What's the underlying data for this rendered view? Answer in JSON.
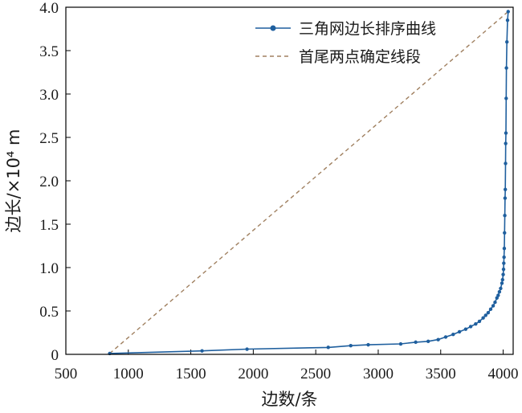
{
  "chart_data": {
    "type": "line",
    "xlabel": "边数/条",
    "ylabel": "边长/×10⁴ m",
    "xlim": [
      500,
      4080
    ],
    "ylim": [
      0,
      4.0
    ],
    "xticks": [
      500,
      1000,
      1500,
      2000,
      2500,
      3000,
      3500,
      4000
    ],
    "yticks": [
      0,
      0.5,
      1.0,
      1.5,
      2.0,
      2.5,
      3.0,
      3.5,
      4.0
    ],
    "ytick_labels": [
      "0",
      "0.5",
      "1.0",
      "1.5",
      "2.0",
      "2.5",
      "3.0",
      "3.5",
      "4.0"
    ],
    "legend_position": "top-right",
    "colors": {
      "curve": "#1f5f9e",
      "chord": "#a08060",
      "axis": "#000000"
    },
    "series": [
      {
        "name": "三角网边长排序曲线",
        "style": "line-with-markers",
        "x": [
          851,
          1590,
          1950,
          2600,
          2780,
          2920,
          3180,
          3300,
          3400,
          3480,
          3540,
          3600,
          3650,
          3700,
          3740,
          3780,
          3810,
          3840,
          3860,
          3880,
          3900,
          3920,
          3935,
          3950,
          3960,
          3970,
          3980,
          3990,
          3995,
          4000,
          4003,
          4005,
          4007,
          4009,
          4011,
          4013,
          4015,
          4017,
          4019,
          4020,
          4022,
          4024,
          4026,
          4030,
          4035,
          4040
        ],
        "y": [
          0.01,
          0.04,
          0.06,
          0.08,
          0.1,
          0.11,
          0.12,
          0.14,
          0.15,
          0.17,
          0.2,
          0.23,
          0.26,
          0.29,
          0.32,
          0.35,
          0.38,
          0.42,
          0.45,
          0.48,
          0.52,
          0.56,
          0.6,
          0.65,
          0.68,
          0.72,
          0.76,
          0.82,
          0.86,
          0.92,
          0.98,
          1.05,
          1.12,
          1.22,
          1.4,
          1.6,
          1.8,
          1.9,
          2.2,
          2.43,
          2.55,
          2.95,
          3.3,
          3.6,
          3.85,
          3.95
        ]
      },
      {
        "name": "首尾两点确定线段",
        "style": "dashed",
        "x": [
          851,
          4040
        ],
        "y": [
          0.01,
          3.95
        ]
      }
    ]
  }
}
